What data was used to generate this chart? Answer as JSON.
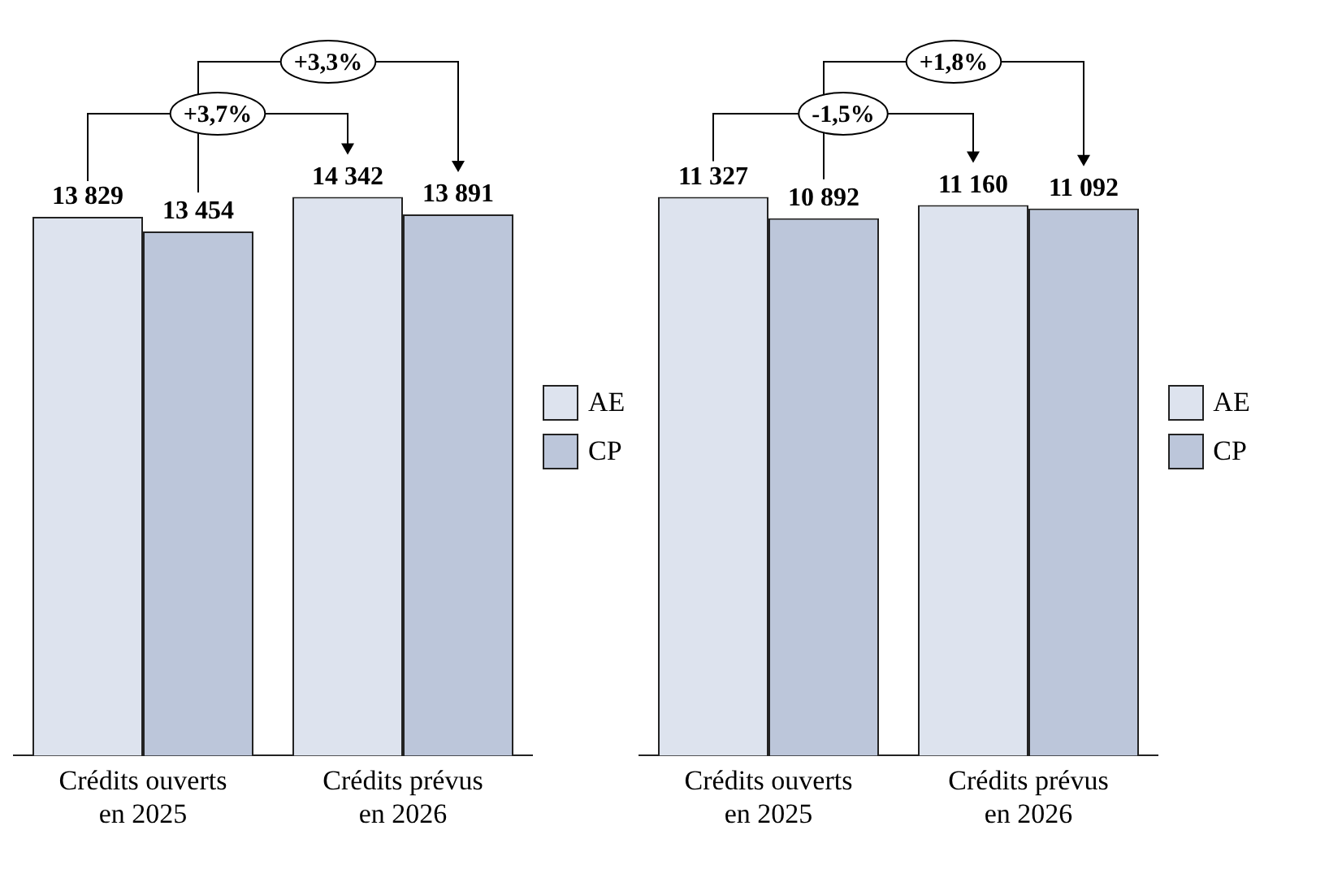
{
  "chart_data": [
    {
      "type": "bar",
      "categories": [
        "Crédits ouverts en 2025",
        "Crédits prévus en 2026"
      ],
      "series": [
        {
          "name": "AE",
          "color": "#dde3ee",
          "values": [
            13829,
            14342
          ]
        },
        {
          "name": "CP",
          "color": "#bcc6da",
          "values": [
            13454,
            13891
          ]
        }
      ],
      "data_labels": true,
      "legend": "right",
      "grid": false,
      "annotations": [
        "+3,7%",
        "+3,3%"
      ]
    },
    {
      "type": "bar",
      "categories": [
        "Crédits ouverts en 2025",
        "Crédits prévus en 2026"
      ],
      "series": [
        {
          "name": "AE",
          "color": "#dde3ee",
          "values": [
            11327,
            11160
          ]
        },
        {
          "name": "CP",
          "color": "#bcc6da",
          "values": [
            10892,
            11092
          ]
        }
      ],
      "data_labels": true,
      "legend": "right",
      "grid": false,
      "annotations": [
        "-1,5%",
        "+1,8%"
      ]
    }
  ]
}
